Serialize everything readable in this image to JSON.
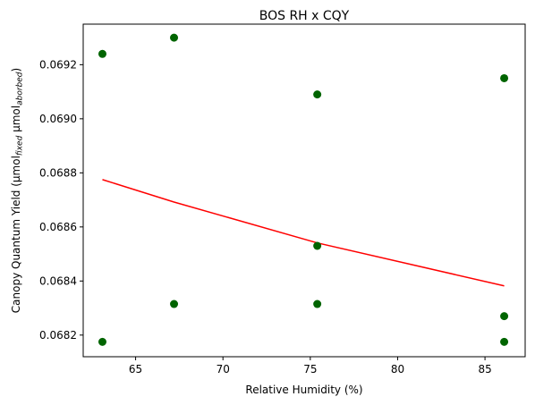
{
  "chart_data": {
    "type": "scatter",
    "title": "BOS RH x CQY",
    "xlabel": "Relative Humidity (%)",
    "ylabel": {
      "main": "Canopy Quantum Yield (μmol",
      "sub1": "fixed",
      "mid": " μmol",
      "sub2": "aborbed",
      "end": ")"
    },
    "xlim": [
      62.0,
      87.3
    ],
    "ylim": [
      0.06812,
      0.06935
    ],
    "xticks": [
      65,
      70,
      75,
      80,
      85
    ],
    "yticks": [
      0.0682,
      0.0684,
      0.0686,
      0.0688,
      0.069,
      0.0692
    ],
    "grid": false,
    "points": {
      "color": "#006400",
      "x": [
        63.1,
        63.1,
        67.2,
        67.2,
        75.4,
        75.4,
        75.4,
        86.1,
        86.1,
        86.1
      ],
      "y": [
        0.06924,
        0.068175,
        0.0693,
        0.068315,
        0.06909,
        0.06853,
        0.068315,
        0.06915,
        0.06827,
        0.068175
      ]
    },
    "fit_line": {
      "color": "#ff0000",
      "x": [
        63.1,
        67.2,
        75.4,
        86.1
      ],
      "y": [
        0.068775,
        0.068692,
        0.068541,
        0.068382
      ]
    }
  }
}
